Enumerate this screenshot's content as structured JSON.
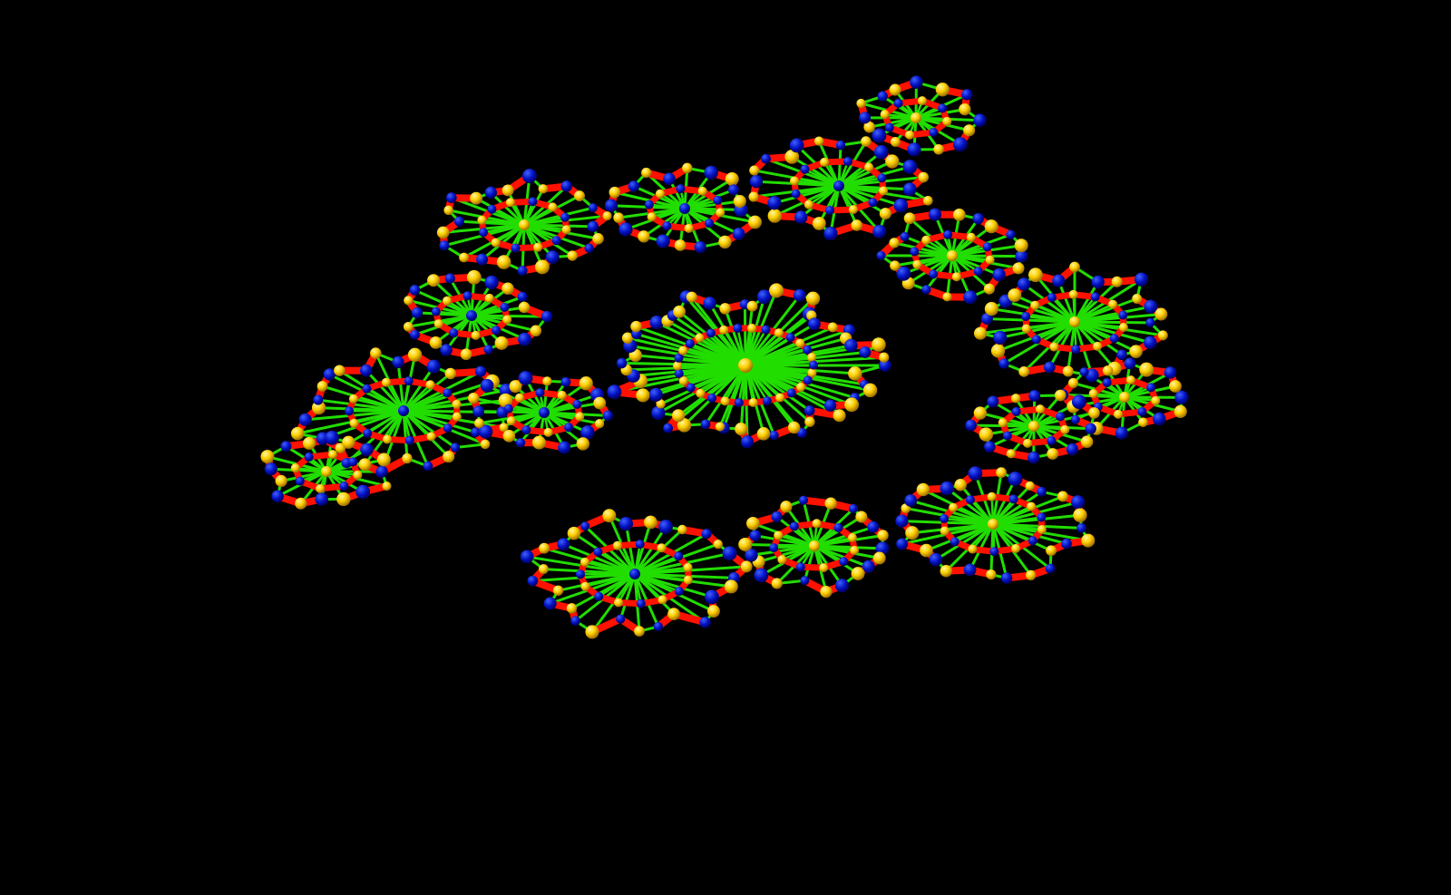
{
  "scene": {
    "background": "#000000",
    "colors": {
      "spoke_edge": "#22dd00",
      "ring_edge": "#ff1100",
      "yellow_node": "#ffd000",
      "blue_node": "#0010c0",
      "label_ink": "#000000"
    }
  }
}
